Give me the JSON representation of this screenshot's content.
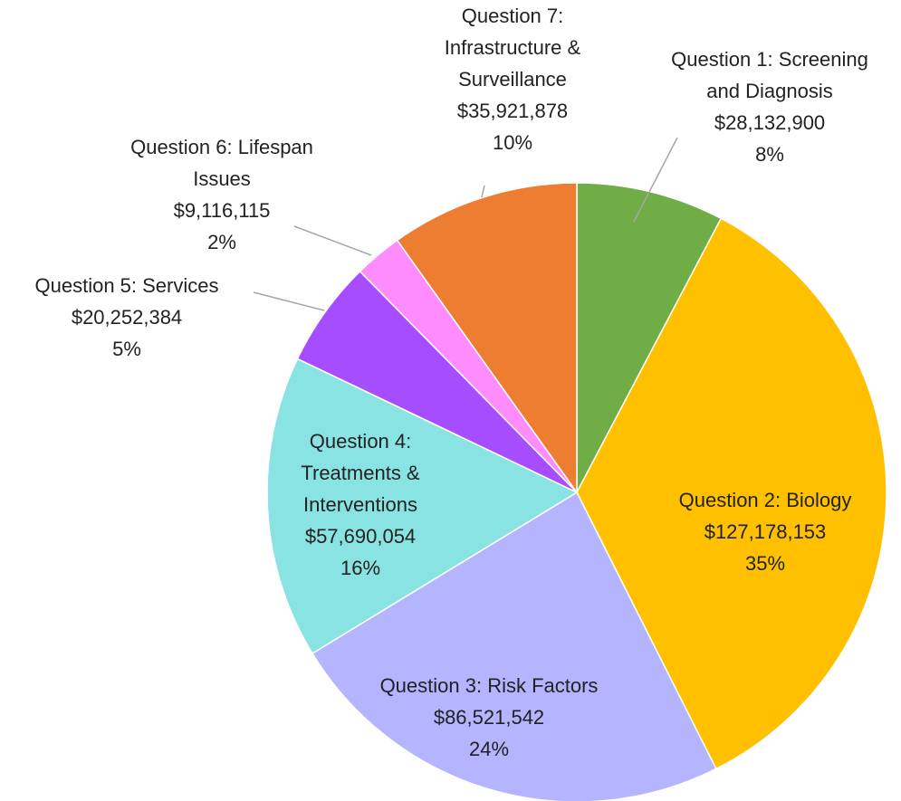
{
  "chart_data": {
    "type": "pie",
    "categories": [
      "Question 1: Screening and Diagnosis",
      "Question 2: Biology",
      "Question 3: Risk Factors",
      "Question 4: Treatments & Interventions",
      "Question 5: Services",
      "Question 6: Lifespan Issues",
      "Question 7: Infrastructure & Surveillance"
    ],
    "values": [
      28132900,
      127178153,
      86521542,
      57690054,
      20252384,
      9116115,
      35921878
    ],
    "value_labels": [
      "$28,132,900",
      "$127,178,153",
      "$86,521,542",
      "$57,690,054",
      "$20,252,384",
      "$9,116,115",
      "$35,921,878"
    ],
    "percents": [
      {
        "value": 8,
        "label": "8%"
      },
      {
        "value": 35,
        "label": "35%"
      },
      {
        "value": 24,
        "label": "24%"
      },
      {
        "value": 16,
        "label": "16%"
      },
      {
        "value": 5,
        "label": "5%"
      },
      {
        "value": 2,
        "label": "2%"
      },
      {
        "value": 10,
        "label": "10%"
      }
    ],
    "colors": [
      "#70ad47",
      "#ffc000",
      "#b4b4ff",
      "#8ae3e3",
      "#a64dff",
      "#ff8cff",
      "#ed7d31"
    ]
  }
}
